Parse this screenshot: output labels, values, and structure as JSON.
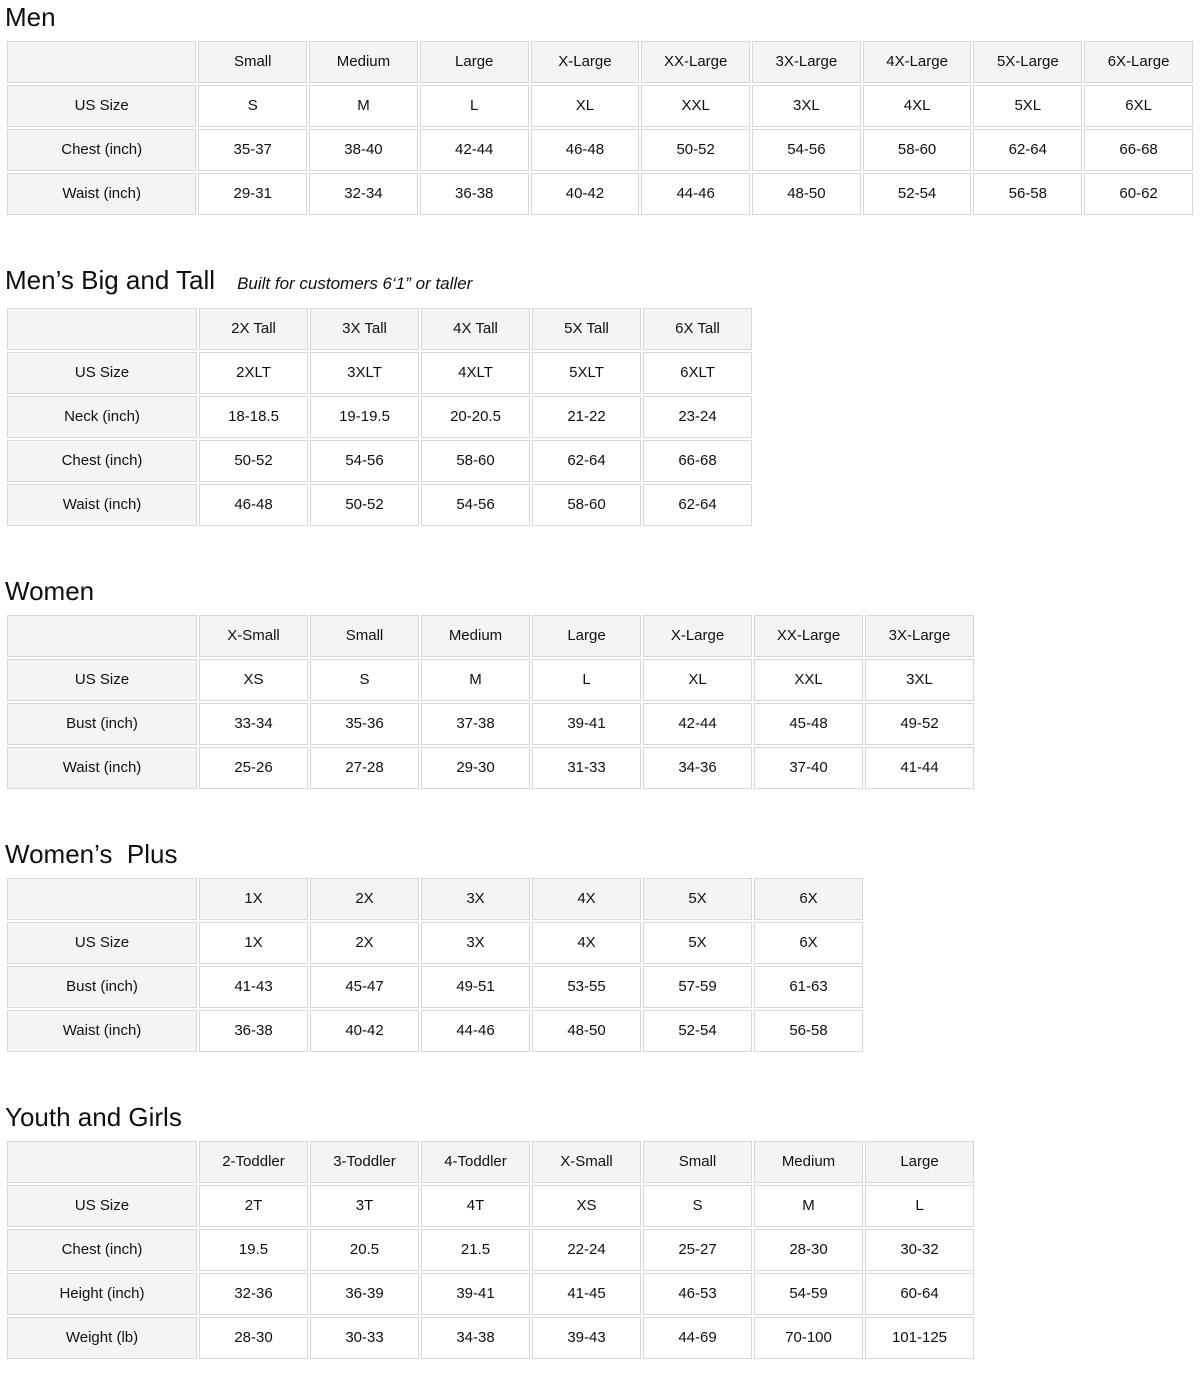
{
  "colors": {
    "header_bg": "#f4f4f4",
    "cell_border": "#d5d9d9",
    "text": "#0f1111",
    "value_bg": "#ffffff"
  },
  "sections": [
    {
      "title": "Men",
      "subtitle": "",
      "columns": [
        "Small",
        "Medium",
        "Large",
        "X-Large",
        "XX-Large",
        "3X-Large",
        "4X-Large",
        "5X-Large",
        "6X-Large"
      ],
      "rows": [
        {
          "label": "US Size",
          "values": [
            "S",
            "M",
            "L",
            "XL",
            "XXL",
            "3XL",
            "4XL",
            "5XL",
            "6XL"
          ]
        },
        {
          "label": "Chest (inch)",
          "values": [
            "35-37",
            "38-40",
            "42-44",
            "46-48",
            "50-52",
            "54-56",
            "58-60",
            "62-64",
            "66-68"
          ]
        },
        {
          "label": "Waist (inch)",
          "values": [
            "29-31",
            "32-34",
            "36-38",
            "40-42",
            "44-46",
            "48-50",
            "52-54",
            "56-58",
            "60-62"
          ]
        }
      ]
    },
    {
      "title": "Men’s Big and Tall",
      "subtitle": "Built for customers 6‘1” or taller",
      "columns": [
        "2X Tall",
        "3X Tall",
        "4X Tall",
        "5X Tall",
        "6X Tall"
      ],
      "rows": [
        {
          "label": "US Size",
          "values": [
            "2XLT",
            "3XLT",
            "4XLT",
            "5XLT",
            "6XLT"
          ]
        },
        {
          "label": "Neck (inch)",
          "values": [
            "18-18.5",
            "19-19.5",
            "20-20.5",
            "21-22",
            "23-24"
          ]
        },
        {
          "label": "Chest (inch)",
          "values": [
            "50-52",
            "54-56",
            "58-60",
            "62-64",
            "66-68"
          ]
        },
        {
          "label": "Waist (inch)",
          "values": [
            "46-48",
            "50-52",
            "54-56",
            "58-60",
            "62-64"
          ]
        }
      ]
    },
    {
      "title": "Women",
      "subtitle": "",
      "columns": [
        "X-Small",
        "Small",
        "Medium",
        "Large",
        "X-Large",
        "XX-Large",
        "3X-Large"
      ],
      "rows": [
        {
          "label": "US Size",
          "values": [
            "XS",
            "S",
            "M",
            "L",
            "XL",
            "XXL",
            "3XL"
          ]
        },
        {
          "label": "Bust (inch)",
          "values": [
            "33-34",
            "35-36",
            "37-38",
            "39-41",
            "42-44",
            "45-48",
            "49-52"
          ]
        },
        {
          "label": "Waist (inch)",
          "values": [
            "25-26",
            "27-28",
            "29-30",
            "31-33",
            "34-36",
            "37-40",
            "41-44"
          ]
        }
      ]
    },
    {
      "title": "Women’s  Plus",
      "subtitle": "",
      "columns": [
        "1X",
        "2X",
        "3X",
        "4X",
        "5X",
        "6X"
      ],
      "rows": [
        {
          "label": "US Size",
          "values": [
            "1X",
            "2X",
            "3X",
            "4X",
            "5X",
            "6X"
          ]
        },
        {
          "label": "Bust (inch)",
          "values": [
            "41-43",
            "45-47",
            "49-51",
            "53-55",
            "57-59",
            "61-63"
          ]
        },
        {
          "label": "Waist (inch)",
          "values": [
            "36-38",
            "40-42",
            "44-46",
            "48-50",
            "52-54",
            "56-58"
          ]
        }
      ]
    },
    {
      "title": "Youth and Girls",
      "subtitle": "",
      "columns": [
        "2-Toddler",
        "3-Toddler",
        "4-Toddler",
        "X-Small",
        "Small",
        "Medium",
        "Large"
      ],
      "rows": [
        {
          "label": "US Size",
          "values": [
            "2T",
            "3T",
            "4T",
            "XS",
            "S",
            "M",
            "L"
          ]
        },
        {
          "label": "Chest (inch)",
          "values": [
            "19.5",
            "20.5",
            "21.5",
            "22-24",
            "25-27",
            "28-30",
            "30-32"
          ]
        },
        {
          "label": "Height (inch)",
          "values": [
            "32-36",
            "36-39",
            "39-41",
            "41-45",
            "46-53",
            "54-59",
            "60-64"
          ]
        },
        {
          "label": "Weight (lb)",
          "values": [
            "28-30",
            "30-33",
            "34-38",
            "39-43",
            "44-69",
            "70-100",
            "101-125"
          ]
        }
      ]
    }
  ]
}
